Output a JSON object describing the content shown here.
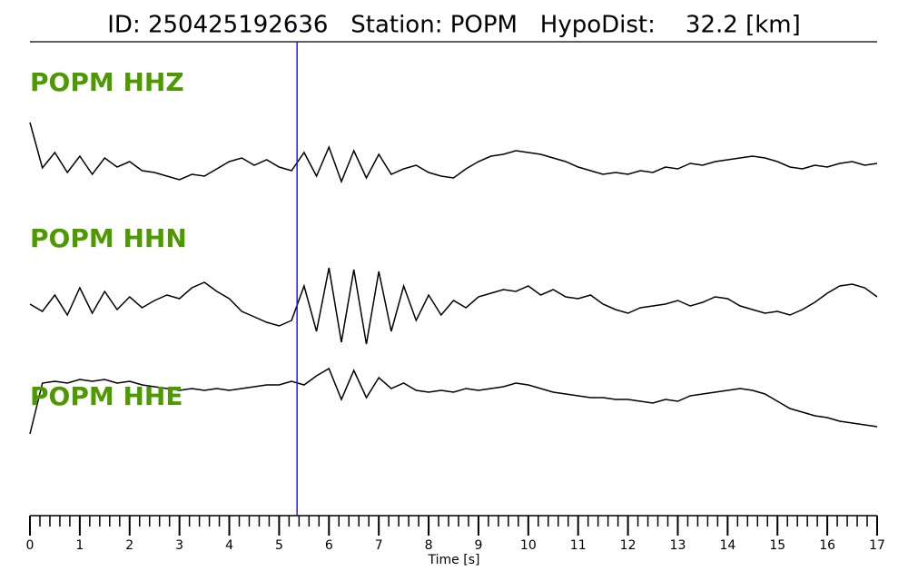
{
  "chart_data": {
    "type": "line",
    "title": "ID: 250425192636   Station: POPM   HypoDist:    32.2 [km]",
    "xlabel": "Time [s]",
    "xlim": [
      0,
      17
    ],
    "xticks": [
      0,
      1,
      2,
      3,
      4,
      5,
      6,
      7,
      8,
      9,
      10,
      11,
      12,
      13,
      14,
      15,
      16,
      17
    ],
    "xminorticks": [
      0.2,
      0.4,
      0.6,
      0.8,
      1.2,
      1.4,
      1.6,
      1.8,
      2.2,
      2.4,
      2.6,
      2.8,
      3.2,
      3.4,
      3.6,
      3.8,
      4.2,
      4.4,
      4.6,
      4.8,
      5.2,
      5.4,
      5.6,
      5.8,
      6.2,
      6.4,
      6.6,
      6.8,
      7.2,
      7.4,
      7.6,
      7.8,
      8.2,
      8.4,
      8.6,
      8.8,
      9.2,
      9.4,
      9.6,
      9.8,
      10.2,
      10.4,
      10.6,
      10.8,
      11.2,
      11.4,
      11.6,
      11.8,
      12.2,
      12.4,
      12.6,
      12.8,
      13.2,
      13.4,
      13.6,
      13.8,
      14.2,
      14.4,
      14.6,
      14.8,
      15.2,
      15.4,
      15.6,
      15.8,
      16.2,
      16.4,
      16.6,
      16.8
    ],
    "pick_time": 5.36,
    "pick_color": "#1f1fd0",
    "label_color": "#4c9a00",
    "x": [
      0,
      0.25,
      0.5,
      0.75,
      1,
      1.25,
      1.5,
      1.75,
      2,
      2.25,
      2.5,
      2.75,
      3,
      3.25,
      3.5,
      3.75,
      4,
      4.25,
      4.5,
      4.75,
      5,
      5.25,
      5.5,
      5.75,
      6,
      6.25,
      6.5,
      6.75,
      7,
      7.25,
      7.5,
      7.75,
      8,
      8.25,
      8.5,
      8.75,
      9,
      9.25,
      9.5,
      9.75,
      10,
      10.25,
      10.5,
      10.75,
      11,
      11.25,
      11.5,
      11.75,
      12,
      12.25,
      12.5,
      12.75,
      13,
      13.25,
      13.5,
      13.75,
      14,
      14.25,
      14.5,
      14.75,
      15,
      15.25,
      15.5,
      15.75,
      16,
      16.25,
      16.5,
      16.75,
      17
    ],
    "series": [
      {
        "name": "POPM HHZ",
        "color": "#000000",
        "values": [
          45,
          -5,
          12,
          -10,
          8,
          -12,
          6,
          -4,
          2,
          -8,
          -10,
          -14,
          -18,
          -12,
          -14,
          -6,
          2,
          6,
          -2,
          4,
          -4,
          -8,
          12,
          -14,
          18,
          -20,
          14,
          -16,
          10,
          -12,
          -6,
          -2,
          -10,
          -14,
          -16,
          -6,
          2,
          8,
          10,
          14,
          12,
          10,
          6,
          2,
          -4,
          -8,
          -12,
          -10,
          -12,
          -8,
          -10,
          -4,
          -6,
          0,
          -2,
          2,
          4,
          6,
          8,
          6,
          2,
          -4,
          -6,
          -2,
          -4,
          0,
          2,
          -2,
          0
        ]
      },
      {
        "name": "POPM HHN",
        "color": "#000000",
        "values": [
          0,
          -8,
          10,
          -12,
          18,
          -10,
          14,
          -6,
          8,
          -4,
          4,
          10,
          6,
          18,
          24,
          14,
          6,
          -8,
          -14,
          -20,
          -24,
          -18,
          20,
          -30,
          40,
          -42,
          38,
          -44,
          36,
          -30,
          20,
          -18,
          10,
          -12,
          4,
          -4,
          8,
          12,
          16,
          14,
          20,
          10,
          16,
          8,
          6,
          10,
          0,
          -6,
          -10,
          -4,
          -2,
          0,
          4,
          -2,
          2,
          8,
          6,
          -2,
          -6,
          -10,
          -8,
          -12,
          -6,
          2,
          12,
          20,
          22,
          18,
          8
        ]
      },
      {
        "name": "POPM HHE",
        "color": "#000000",
        "values": [
          -48,
          8,
          10,
          8,
          12,
          10,
          12,
          8,
          10,
          6,
          4,
          2,
          0,
          2,
          0,
          2,
          0,
          2,
          4,
          6,
          6,
          10,
          6,
          16,
          24,
          -10,
          22,
          -8,
          14,
          2,
          8,
          0,
          -2,
          0,
          -2,
          2,
          0,
          2,
          4,
          8,
          6,
          2,
          -2,
          -4,
          -6,
          -8,
          -8,
          -10,
          -10,
          -12,
          -14,
          -10,
          -12,
          -6,
          -4,
          -2,
          0,
          2,
          0,
          -4,
          -12,
          -20,
          -24,
          -28,
          -30,
          -34,
          -36,
          -38,
          -40
        ]
      }
    ]
  }
}
